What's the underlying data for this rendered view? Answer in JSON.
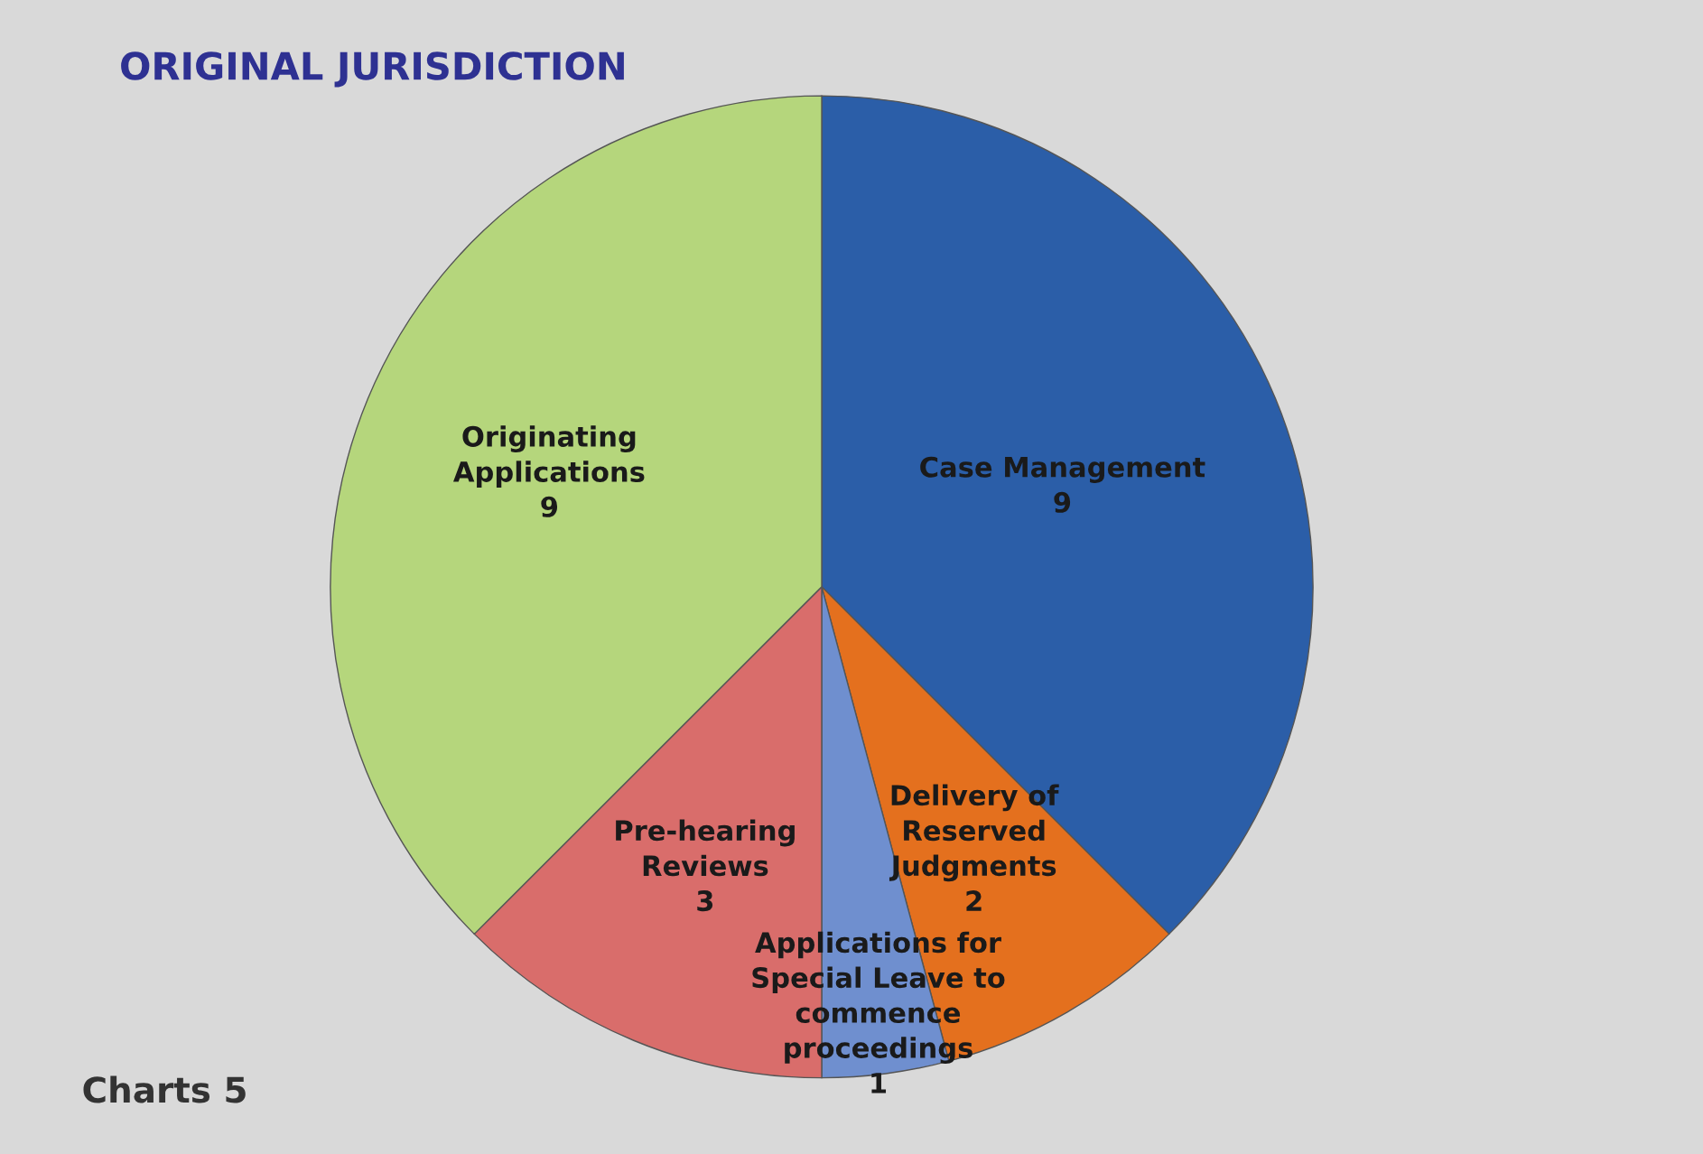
{
  "chart_data": {
    "type": "pie",
    "title": "ORIGINAL JURISDICTION",
    "categories": [
      "Case Management",
      "Delivery of Reserved Judgments",
      "Applications for Special Leave to commence proceedings",
      "Pre-hearing Reviews",
      "Originating Applications"
    ],
    "values": [
      9,
      2,
      1,
      3,
      9
    ],
    "colors": [
      "#2b5ea8",
      "#e4701e",
      "#6f8fcf",
      "#d96d6b",
      "#b5d67c"
    ],
    "data_labels": true,
    "legend": false,
    "annotations": [
      "Charts 5"
    ]
  }
}
